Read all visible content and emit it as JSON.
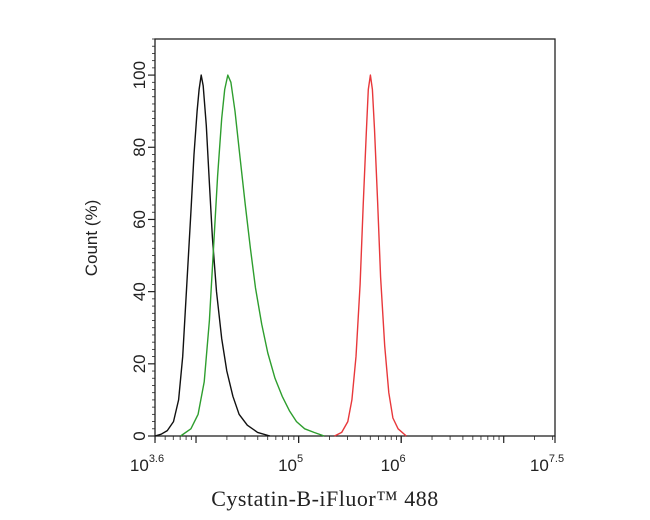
{
  "chart_data": {
    "type": "line",
    "xscale": "log10",
    "xlim": [
      3.6,
      7.5
    ],
    "ylim": [
      0,
      110
    ],
    "xlabel": "Cystatin-B-iFluor™ 488",
    "ylabel": "Count (%)",
    "x_ticks": [
      {
        "value": 3.6,
        "base": "10",
        "exp": "3.6"
      },
      {
        "value": 5,
        "base": "10",
        "exp": "5"
      },
      {
        "value": 6,
        "base": "10",
        "exp": "6"
      },
      {
        "value": 7.5,
        "base": "10",
        "exp": "7.5"
      }
    ],
    "y_ticks": [
      {
        "value": 0,
        "label": "0"
      },
      {
        "value": 20,
        "label": "20"
      },
      {
        "value": 40,
        "label": "40"
      },
      {
        "value": 60,
        "label": "60"
      },
      {
        "value": 80,
        "label": "80"
      },
      {
        "value": 100,
        "label": "100"
      }
    ],
    "grid": false,
    "series": [
      {
        "color": "#111111",
        "points": [
          [
            3.6,
            0
          ],
          [
            3.66,
            0.5
          ],
          [
            3.72,
            1.5
          ],
          [
            3.78,
            4
          ],
          [
            3.83,
            10
          ],
          [
            3.87,
            22
          ],
          [
            3.91,
            42
          ],
          [
            3.95,
            62
          ],
          [
            3.98,
            78
          ],
          [
            4.01,
            90
          ],
          [
            4.03,
            96
          ],
          [
            4.05,
            100
          ],
          [
            4.07,
            97
          ],
          [
            4.1,
            86
          ],
          [
            4.13,
            70
          ],
          [
            4.16,
            55
          ],
          [
            4.2,
            40
          ],
          [
            4.25,
            27
          ],
          [
            4.3,
            18
          ],
          [
            4.36,
            11
          ],
          [
            4.42,
            6
          ],
          [
            4.5,
            3
          ],
          [
            4.6,
            1
          ],
          [
            4.72,
            0
          ]
        ]
      },
      {
        "color": "#2e9e2e",
        "points": [
          [
            3.85,
            0
          ],
          [
            3.95,
            2
          ],
          [
            4.02,
            6
          ],
          [
            4.08,
            15
          ],
          [
            4.13,
            32
          ],
          [
            4.17,
            52
          ],
          [
            4.21,
            72
          ],
          [
            4.25,
            88
          ],
          [
            4.28,
            96
          ],
          [
            4.31,
            100
          ],
          [
            4.34,
            98
          ],
          [
            4.38,
            90
          ],
          [
            4.43,
            77
          ],
          [
            4.48,
            64
          ],
          [
            4.53,
            52
          ],
          [
            4.58,
            41
          ],
          [
            4.64,
            31
          ],
          [
            4.7,
            23
          ],
          [
            4.77,
            16
          ],
          [
            4.84,
            11
          ],
          [
            4.91,
            7
          ],
          [
            4.98,
            4
          ],
          [
            5.06,
            2
          ],
          [
            5.15,
            1
          ],
          [
            5.25,
            0
          ]
        ]
      },
      {
        "color": "#e8383b",
        "points": [
          [
            5.35,
            0
          ],
          [
            5.42,
            1
          ],
          [
            5.48,
            4
          ],
          [
            5.52,
            10
          ],
          [
            5.56,
            22
          ],
          [
            5.6,
            42
          ],
          [
            5.63,
            64
          ],
          [
            5.66,
            84
          ],
          [
            5.68,
            96
          ],
          [
            5.7,
            100
          ],
          [
            5.72,
            96
          ],
          [
            5.74,
            85
          ],
          [
            5.77,
            65
          ],
          [
            5.8,
            44
          ],
          [
            5.84,
            25
          ],
          [
            5.88,
            12
          ],
          [
            5.92,
            5
          ],
          [
            5.97,
            2
          ],
          [
            6.05,
            0
          ]
        ]
      }
    ]
  }
}
